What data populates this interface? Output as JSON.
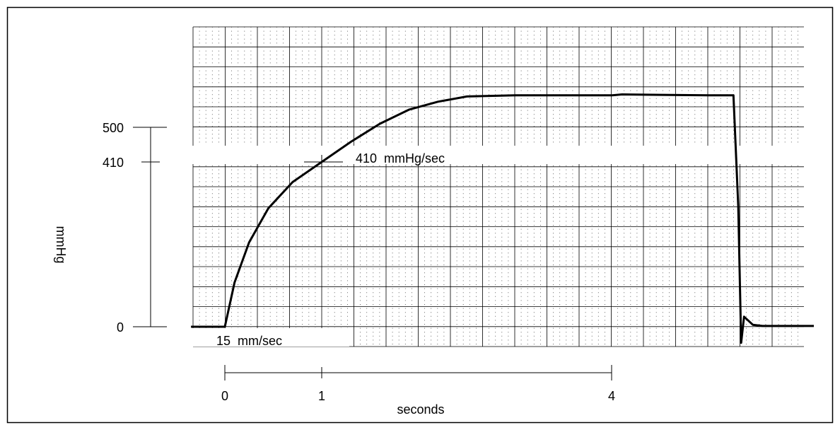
{
  "chart_data": {
    "type": "line",
    "title": "",
    "xlabel": "seconds",
    "ylabel": "mmHg",
    "x_ticks": [
      "0",
      "1",
      "4"
    ],
    "y_ticks": [
      "0",
      "410",
      "500"
    ],
    "annotations": {
      "slope": "410  mmHg/sec",
      "paper_speed": "15  mm/sec"
    },
    "series": [
      {
        "x": [
          -0.35,
          -0.02,
          0.0,
          0.1,
          0.25,
          0.45,
          0.7,
          1.0,
          1.3,
          1.6,
          1.9,
          2.2,
          2.5,
          3.0,
          3.5,
          4.0,
          4.1,
          4.5,
          5.0,
          5.25,
          5.3,
          5.33,
          5.36,
          5.45,
          5.55,
          5.8,
          6.0,
          6.08
        ],
        "y": [
          0,
          0,
          0,
          110,
          210,
          295,
          360,
          410,
          460,
          505,
          540,
          560,
          573,
          576,
          576,
          576,
          578,
          577,
          576,
          576,
          300,
          -40,
          25,
          5,
          2,
          2,
          2,
          2
        ]
      }
    ],
    "xlim": [
      -0.35,
      6.08
    ],
    "ylim": [
      -40,
      576
    ]
  }
}
